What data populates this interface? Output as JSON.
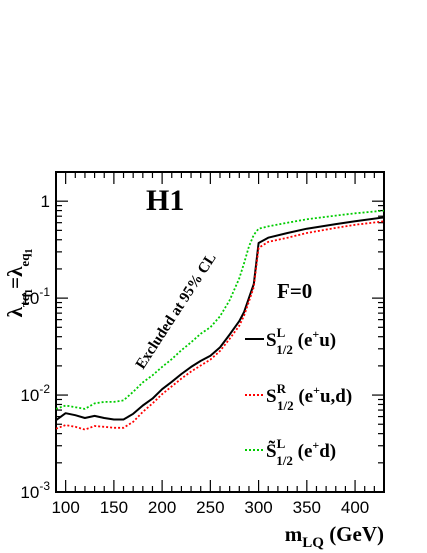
{
  "chart_data": {
    "type": "line",
    "title": "H1",
    "xlabel": "m_LQ (GeV)",
    "xlabel_main": "m",
    "xlabel_sub": "LQ",
    "xlabel_unit": " (GeV)",
    "ylabel": "λ_τq1 = λ_eq1",
    "x_scale": "linear",
    "y_scale": "log",
    "xlim": [
      90,
      430
    ],
    "ylim": [
      0.001,
      2
    ],
    "x_ticks": [
      100,
      150,
      200,
      250,
      300,
      350,
      400
    ],
    "x_tick_labels": [
      "100",
      "150",
      "200",
      "250",
      "300",
      "350",
      "400"
    ],
    "y_ticks": [
      0.001,
      0.01,
      0.1,
      1
    ],
    "y_tick_labels": [
      {
        "base": "10",
        "exp": "-3"
      },
      {
        "base": "10",
        "exp": "-2"
      },
      {
        "base": "10",
        "exp": "-1"
      },
      {
        "base": "1",
        "exp": ""
      }
    ],
    "annotations": {
      "fermion_number": "F=0",
      "excluded": "Excluded at 95% CL"
    },
    "legend_position": "right",
    "series": [
      {
        "name": "S_1/2^L (e+u)",
        "legend_main": "S",
        "legend_sup": "L",
        "legend_sub": "1/2",
        "legend_pre": "(e",
        "legend_pre_sup": "+",
        "legend_post": "u)",
        "color": "#000000",
        "dash": "solid",
        "x": [
          90,
          100,
          110,
          120,
          130,
          140,
          150,
          160,
          170,
          180,
          190,
          200,
          210,
          220,
          230,
          240,
          250,
          260,
          270,
          280,
          285,
          290,
          295,
          300,
          310,
          330,
          350,
          380,
          400,
          430
        ],
        "y": [
          0.0055,
          0.0065,
          0.0062,
          0.0058,
          0.0061,
          0.0058,
          0.0056,
          0.0056,
          0.0064,
          0.0078,
          0.0092,
          0.0115,
          0.0137,
          0.0165,
          0.0195,
          0.0225,
          0.0255,
          0.031,
          0.042,
          0.058,
          0.072,
          0.1,
          0.14,
          0.37,
          0.42,
          0.47,
          0.52,
          0.58,
          0.62,
          0.68
        ]
      },
      {
        "name": "S_1/2^R (e+u,d)",
        "legend_main": "S",
        "legend_sup": "R",
        "legend_sub": "1/2",
        "legend_pre": "(e",
        "legend_pre_sup": "+",
        "legend_post": "u,d)",
        "color": "#ff0000",
        "dash": "dotted",
        "x": [
          90,
          100,
          110,
          120,
          130,
          140,
          150,
          160,
          170,
          180,
          190,
          200,
          210,
          220,
          230,
          240,
          250,
          260,
          270,
          280,
          285,
          290,
          295,
          300,
          310,
          330,
          350,
          380,
          400,
          430
        ],
        "y": [
          0.0045,
          0.0049,
          0.0047,
          0.0044,
          0.0048,
          0.0047,
          0.0046,
          0.0046,
          0.0053,
          0.0067,
          0.0082,
          0.0102,
          0.0123,
          0.0148,
          0.0175,
          0.0202,
          0.0232,
          0.0285,
          0.038,
          0.052,
          0.066,
          0.092,
          0.13,
          0.33,
          0.38,
          0.42,
          0.47,
          0.53,
          0.57,
          0.62
        ]
      },
      {
        "name": "S~_1/2^L (e+d)",
        "legend_main": "S̃",
        "legend_sup": "L",
        "legend_sub": "1/2",
        "legend_pre": "(e",
        "legend_pre_sup": "+",
        "legend_post": "d)",
        "color": "#00cc00",
        "dash": "dotted",
        "x": [
          90,
          100,
          110,
          120,
          130,
          140,
          150,
          160,
          170,
          180,
          190,
          200,
          210,
          220,
          230,
          240,
          250,
          260,
          270,
          280,
          285,
          290,
          295,
          300,
          310,
          330,
          350,
          380,
          400,
          430
        ],
        "y": [
          0.0072,
          0.0078,
          0.0075,
          0.0072,
          0.0082,
          0.0085,
          0.0085,
          0.0088,
          0.0108,
          0.0135,
          0.016,
          0.0195,
          0.0235,
          0.029,
          0.035,
          0.043,
          0.05,
          0.065,
          0.095,
          0.16,
          0.23,
          0.34,
          0.45,
          0.52,
          0.55,
          0.6,
          0.65,
          0.71,
          0.75,
          0.8
        ]
      }
    ]
  }
}
